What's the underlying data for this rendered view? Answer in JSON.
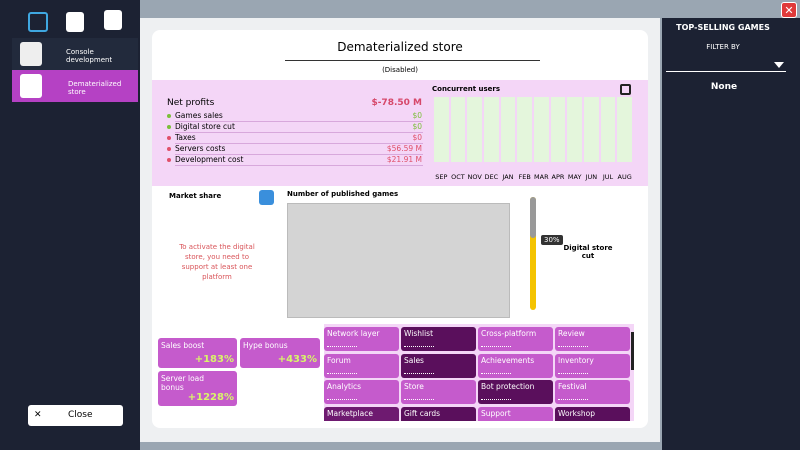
{
  "sidebar": {
    "items": [
      "Console development",
      "Dematerialized store"
    ],
    "close": "Close"
  },
  "dialog": {
    "title": "Dematerialized store",
    "status": "(Disabled)",
    "profits": {
      "label": "Net profits",
      "value": "$-78.50 M",
      "rows": [
        {
          "label": "Games sales",
          "value": "$0",
          "color": "#7bbf3a"
        },
        {
          "label": "Digital store cut",
          "value": "$0",
          "color": "#7bbf3a"
        },
        {
          "label": "Taxes",
          "value": "$0",
          "color": "#e0506a"
        },
        {
          "label": "Servers costs",
          "value": "$56.59 M",
          "color": "#e0506a"
        },
        {
          "label": "Development cost",
          "value": "$21.91 M",
          "color": "#e0506a"
        }
      ]
    },
    "users": {
      "title": "Concurrent users",
      "months": [
        "SEP",
        "OCT",
        "NOV",
        "DEC",
        "JAN",
        "FEB",
        "MAR",
        "APR",
        "MAY",
        "JUN",
        "JUL",
        "AUG"
      ]
    },
    "market_share": {
      "title": "Market share",
      "message": "To activate the digital store, you need to support at least one platform"
    },
    "published": {
      "title": "Number of published games"
    },
    "cut": {
      "value": "30%",
      "label": "Digital store cut"
    },
    "bonuses": [
      {
        "label": "Sales boost",
        "value": "+183%"
      },
      {
        "label": "Hype bonus",
        "value": "+433%"
      },
      {
        "label": "Server load bonus",
        "value": "+1228%"
      }
    ],
    "features": [
      {
        "name": "Network layer",
        "color": "#c55bcc"
      },
      {
        "name": "Wishlist",
        "color": "#5a0f5c"
      },
      {
        "name": "Cross-platform",
        "color": "#c55bcc"
      },
      {
        "name": "Review",
        "color": "#c55bcc"
      },
      {
        "name": "Forum",
        "color": "#c55bcc"
      },
      {
        "name": "Sales",
        "color": "#5a0f5c"
      },
      {
        "name": "Achievements",
        "color": "#c55bcc"
      },
      {
        "name": "Inventory",
        "color": "#c55bcc"
      },
      {
        "name": "Analytics",
        "color": "#c55bcc"
      },
      {
        "name": "Store",
        "color": "#c55bcc"
      },
      {
        "name": "Bot protection",
        "color": "#5a0f5c"
      },
      {
        "name": "Festival",
        "color": "#c55bcc"
      },
      {
        "name": "Marketplace",
        "color": "#6e1a70"
      },
      {
        "name": "Gift cards",
        "color": "#5a0f5c"
      },
      {
        "name": "Support",
        "color": "#c55bcc"
      },
      {
        "name": "Workshop",
        "color": "#5a0f5c"
      }
    ]
  },
  "right_panel": {
    "title": "TOP-SELLING GAMES",
    "filter_label": "FILTER BY",
    "filter_value": "None"
  }
}
